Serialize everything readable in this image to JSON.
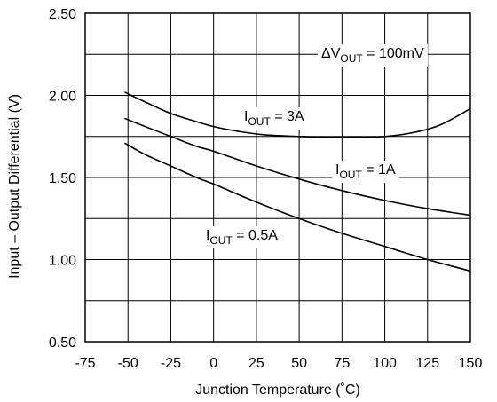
{
  "chart_data": {
    "type": "line",
    "title": "",
    "xlabel": "Junction Temperature (˚C)",
    "ylabel": "Input – Output Differential (V)",
    "xlim": [
      -75,
      150
    ],
    "ylim": [
      0.5,
      2.5
    ],
    "x_ticks": [
      "-75",
      "-50",
      "-25",
      "0",
      "25",
      "50",
      "75",
      "100",
      "125",
      "150"
    ],
    "y_ticks": [
      "0.50",
      "1.00",
      "1.50",
      "2.00",
      "2.50"
    ],
    "grid": true,
    "condition": {
      "prefix": "ΔV",
      "sub": "OUT",
      "suffix": " = 100mV"
    },
    "series": [
      {
        "name": "I OUT = 3A",
        "label_main": "I",
        "label_sub": "OUT",
        "label_suffix": " = 3A",
        "x": [
          -52,
          -40,
          -25,
          -10,
          0,
          15,
          30,
          50,
          70,
          85,
          100,
          115,
          130,
          140,
          150
        ],
        "y": [
          2.02,
          1.96,
          1.89,
          1.84,
          1.81,
          1.78,
          1.76,
          1.75,
          1.745,
          1.745,
          1.75,
          1.77,
          1.81,
          1.86,
          1.92
        ]
      },
      {
        "name": "I OUT = 1A",
        "label_main": "I",
        "label_sub": "OUT",
        "label_suffix": " = 1A",
        "x": [
          -52,
          -40,
          -25,
          -10,
          0,
          25,
          50,
          75,
          100,
          125,
          150
        ],
        "y": [
          1.86,
          1.81,
          1.75,
          1.69,
          1.66,
          1.57,
          1.49,
          1.42,
          1.36,
          1.31,
          1.27
        ]
      },
      {
        "name": "I OUT = 0.5A",
        "label_main": "I",
        "label_sub": "OUT",
        "label_suffix": " = 0.5A",
        "x": [
          -52,
          -40,
          -25,
          -10,
          0,
          25,
          50,
          75,
          100,
          125,
          150
        ],
        "y": [
          1.71,
          1.64,
          1.57,
          1.5,
          1.46,
          1.35,
          1.25,
          1.16,
          1.08,
          1.0,
          0.93
        ]
      }
    ]
  }
}
